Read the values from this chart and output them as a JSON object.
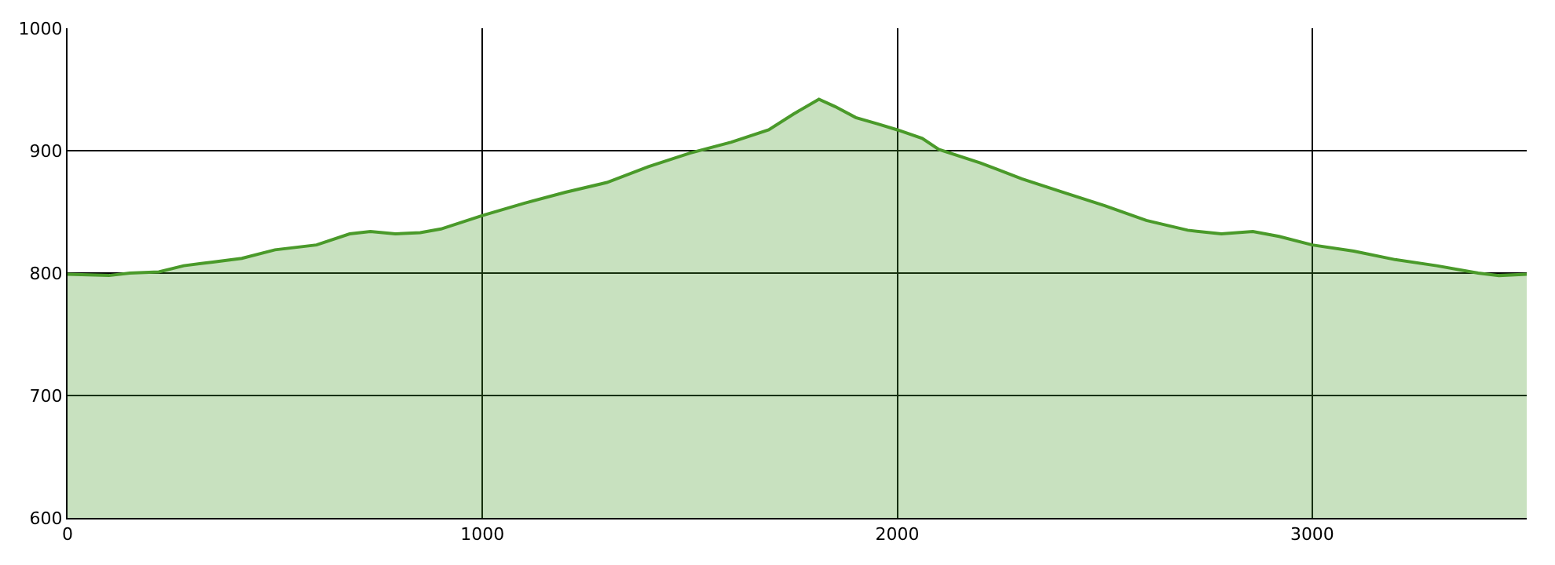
{
  "chart_data": {
    "type": "area",
    "x": [
      0,
      100,
      150,
      220,
      280,
      350,
      420,
      500,
      600,
      680,
      730,
      790,
      850,
      900,
      1000,
      1100,
      1200,
      1300,
      1400,
      1500,
      1600,
      1690,
      1750,
      1811,
      1850,
      1900,
      1951,
      2000,
      2060,
      2100,
      2200,
      2300,
      2400,
      2500,
      2600,
      2700,
      2781,
      2857,
      2920,
      3000,
      3100,
      3200,
      3300,
      3400,
      3450,
      3517
    ],
    "series": [
      {
        "color": "#4a9a2a",
        "values": [
          799,
          798,
          800,
          801,
          806,
          809,
          812,
          819,
          823,
          832,
          834,
          832,
          833,
          836,
          847,
          857,
          866,
          874,
          887,
          898,
          907,
          917,
          930,
          942,
          936,
          927,
          922,
          917,
          910,
          901,
          890,
          877,
          866,
          855,
          843,
          835,
          832,
          834,
          830,
          823,
          818,
          811,
          806,
          800,
          798,
          799
        ]
      }
    ],
    "xlim": [
      0,
      3517
    ],
    "xticks": [
      0,
      1000,
      2000,
      3000
    ],
    "ylim": [
      600,
      1000
    ],
    "yticks": [
      600,
      700,
      800,
      900,
      1000
    ],
    "grid": true,
    "legend": false
  }
}
